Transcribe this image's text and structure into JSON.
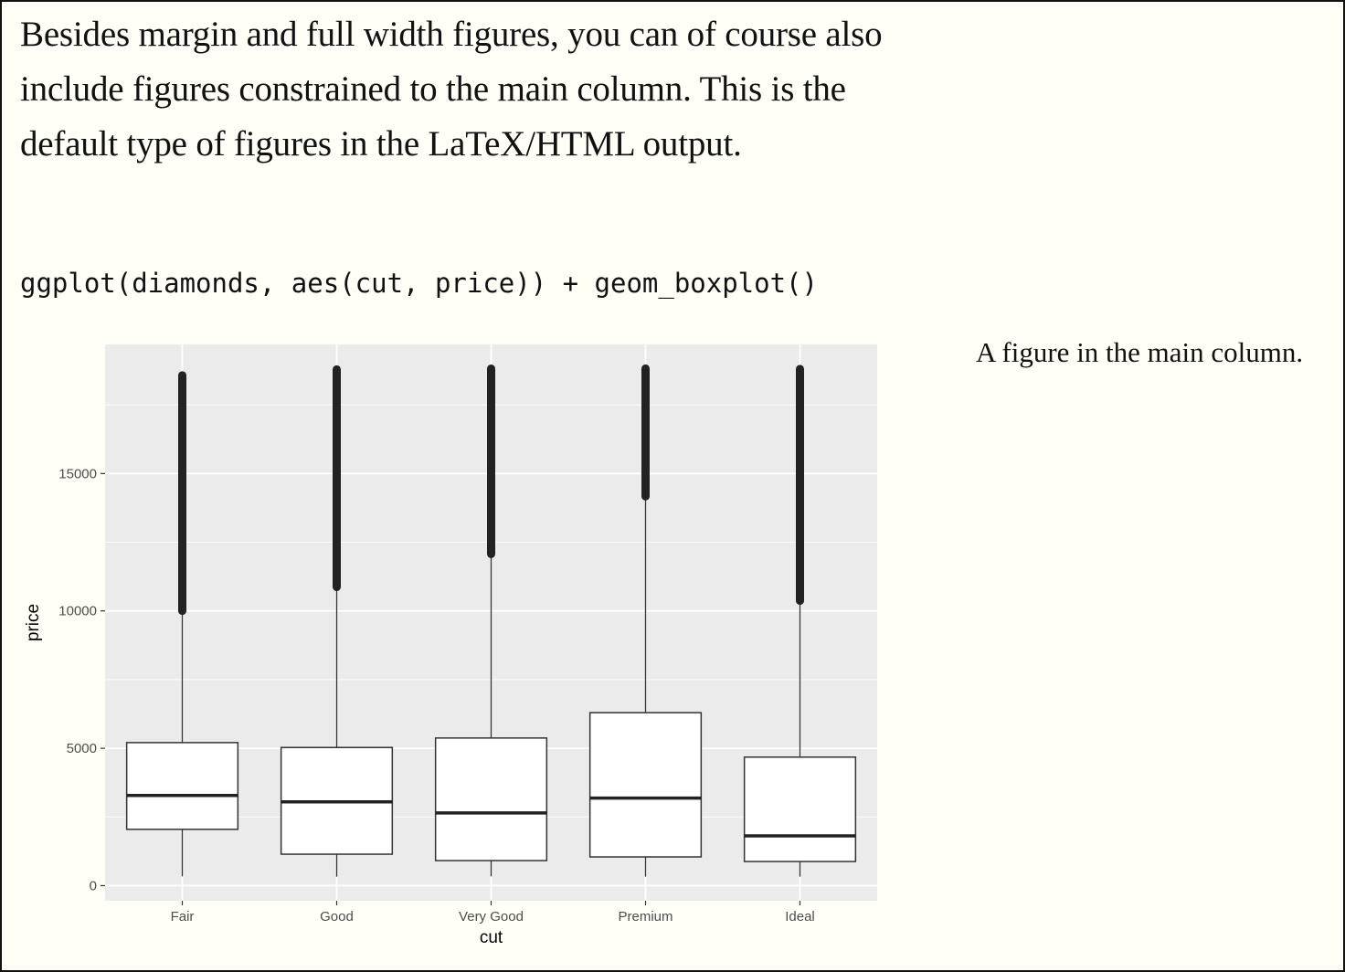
{
  "paragraph": "Besides margin and full width figures, you can of course also include figures constrained to the main column. This is the default type of figures in the LaTeX/HTML output.",
  "code": "ggplot(diamonds, aes(cut, price)) + geom_boxplot()",
  "caption": "A figure in the main column.",
  "chart_data": {
    "type": "boxplot",
    "title": "",
    "xlabel": "cut",
    "ylabel": "price",
    "ylim": [
      -550,
      19700
    ],
    "yticks": [
      0,
      5000,
      10000,
      15000
    ],
    "grid": true,
    "categories": [
      "Fair",
      "Good",
      "Very Good",
      "Premium",
      "Ideal"
    ],
    "boxes": [
      {
        "category": "Fair",
        "whisker_low": 337,
        "q1": 2050,
        "median": 3282,
        "q3": 5206,
        "whisker_high": 9980,
        "outliers_min": 10000,
        "outliers_max": 18574
      },
      {
        "category": "Good",
        "whisker_low": 327,
        "q1": 1145,
        "median": 3050,
        "q3": 5028,
        "whisker_high": 10850,
        "outliers_min": 10870,
        "outliers_max": 18788
      },
      {
        "category": "Very Good",
        "whisker_low": 336,
        "q1": 912,
        "median": 2648,
        "q3": 5373,
        "whisker_high": 12050,
        "outliers_min": 12070,
        "outliers_max": 18818
      },
      {
        "category": "Premium",
        "whisker_low": 326,
        "q1": 1046,
        "median": 3185,
        "q3": 6296,
        "whisker_high": 14150,
        "outliers_min": 14170,
        "outliers_max": 18823
      },
      {
        "category": "Ideal",
        "whisker_low": 326,
        "q1": 878,
        "median": 1810,
        "q3": 4678,
        "whisker_high": 10350,
        "outliers_min": 10370,
        "outliers_max": 18806
      }
    ],
    "colors": {
      "panel": "#ebebeb",
      "grid": "#ffffff",
      "box_fill": "#ffffff",
      "line": "#333333",
      "point": "#222222"
    }
  }
}
